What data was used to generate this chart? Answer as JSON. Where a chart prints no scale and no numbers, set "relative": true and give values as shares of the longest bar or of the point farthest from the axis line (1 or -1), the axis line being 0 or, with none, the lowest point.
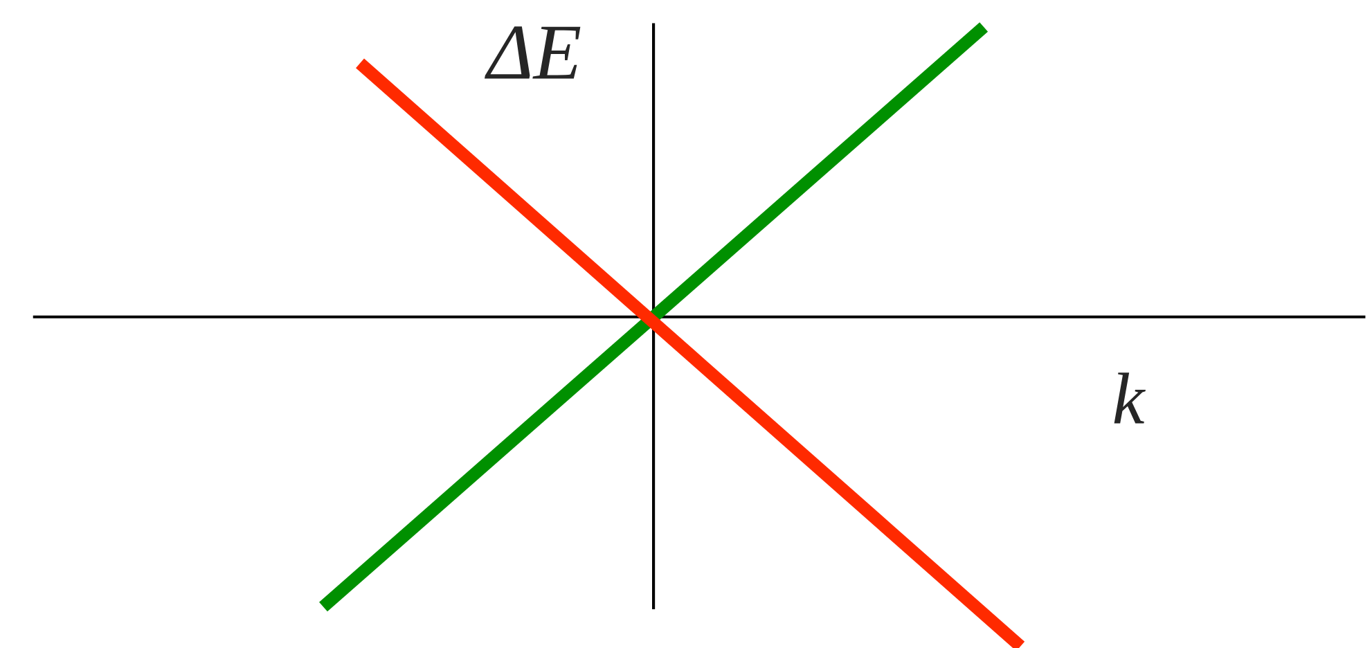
{
  "chart_data": {
    "type": "line",
    "relative": true,
    "xlabel": "k",
    "ylabel": "ΔE",
    "line_style": "solid",
    "categories": [
      null,
      null,
      null,
      null,
      null,
      null,
      null,
      null,
      null,
      null,
      null,
      null,
      null,
      null,
      null,
      null,
      null,
      null,
      null,
      null,
      null
    ],
    "series": [
      {
        "color": "#009000",
        "values": [
          null,
          -0.88,
          null,
          null,
          null,
          null,
          null,
          null,
          null,
          null,
          null,
          null,
          null,
          null,
          null,
          null,
          null,
          null,
          null,
          0.88,
          null
        ]
      },
      {
        "color": "#ff2a00",
        "values": [
          null,
          null,
          0.77,
          null,
          null,
          null,
          null,
          null,
          null,
          null,
          null,
          null,
          null,
          null,
          null,
          null,
          null,
          null,
          null,
          null,
          -1
        ]
      }
    ]
  }
}
